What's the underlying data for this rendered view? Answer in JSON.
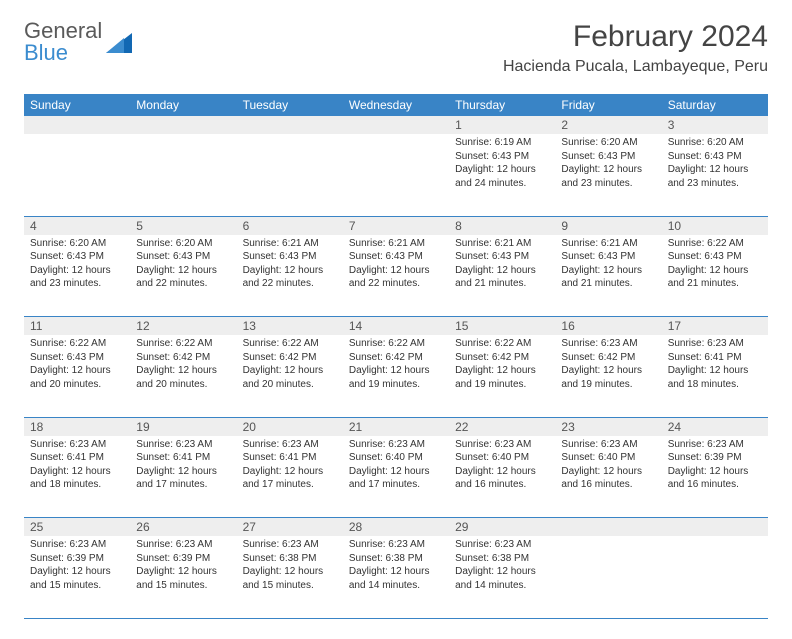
{
  "logo": {
    "text_gray": "General",
    "text_blue": "Blue"
  },
  "title": "February 2024",
  "location": "Hacienda Pucala, Lambayeque, Peru",
  "colors": {
    "header_bg": "#3984c6",
    "header_text": "#ffffff",
    "daynum_bg": "#eeeeee",
    "text": "#333333",
    "rule": "#3984c6"
  },
  "fonts": {
    "title_size": 30,
    "location_size": 16,
    "header_size": 12,
    "body_size": 10
  },
  "weekdays": [
    "Sunday",
    "Monday",
    "Tuesday",
    "Wednesday",
    "Thursday",
    "Friday",
    "Saturday"
  ],
  "weeks": [
    [
      null,
      null,
      null,
      null,
      {
        "n": "1",
        "sunrise": "Sunrise: 6:19 AM",
        "sunset": "Sunset: 6:43 PM",
        "day": "Daylight: 12 hours and 24 minutes."
      },
      {
        "n": "2",
        "sunrise": "Sunrise: 6:20 AM",
        "sunset": "Sunset: 6:43 PM",
        "day": "Daylight: 12 hours and 23 minutes."
      },
      {
        "n": "3",
        "sunrise": "Sunrise: 6:20 AM",
        "sunset": "Sunset: 6:43 PM",
        "day": "Daylight: 12 hours and 23 minutes."
      }
    ],
    [
      {
        "n": "4",
        "sunrise": "Sunrise: 6:20 AM",
        "sunset": "Sunset: 6:43 PM",
        "day": "Daylight: 12 hours and 23 minutes."
      },
      {
        "n": "5",
        "sunrise": "Sunrise: 6:20 AM",
        "sunset": "Sunset: 6:43 PM",
        "day": "Daylight: 12 hours and 22 minutes."
      },
      {
        "n": "6",
        "sunrise": "Sunrise: 6:21 AM",
        "sunset": "Sunset: 6:43 PM",
        "day": "Daylight: 12 hours and 22 minutes."
      },
      {
        "n": "7",
        "sunrise": "Sunrise: 6:21 AM",
        "sunset": "Sunset: 6:43 PM",
        "day": "Daylight: 12 hours and 22 minutes."
      },
      {
        "n": "8",
        "sunrise": "Sunrise: 6:21 AM",
        "sunset": "Sunset: 6:43 PM",
        "day": "Daylight: 12 hours and 21 minutes."
      },
      {
        "n": "9",
        "sunrise": "Sunrise: 6:21 AM",
        "sunset": "Sunset: 6:43 PM",
        "day": "Daylight: 12 hours and 21 minutes."
      },
      {
        "n": "10",
        "sunrise": "Sunrise: 6:22 AM",
        "sunset": "Sunset: 6:43 PM",
        "day": "Daylight: 12 hours and 21 minutes."
      }
    ],
    [
      {
        "n": "11",
        "sunrise": "Sunrise: 6:22 AM",
        "sunset": "Sunset: 6:43 PM",
        "day": "Daylight: 12 hours and 20 minutes."
      },
      {
        "n": "12",
        "sunrise": "Sunrise: 6:22 AM",
        "sunset": "Sunset: 6:42 PM",
        "day": "Daylight: 12 hours and 20 minutes."
      },
      {
        "n": "13",
        "sunrise": "Sunrise: 6:22 AM",
        "sunset": "Sunset: 6:42 PM",
        "day": "Daylight: 12 hours and 20 minutes."
      },
      {
        "n": "14",
        "sunrise": "Sunrise: 6:22 AM",
        "sunset": "Sunset: 6:42 PM",
        "day": "Daylight: 12 hours and 19 minutes."
      },
      {
        "n": "15",
        "sunrise": "Sunrise: 6:22 AM",
        "sunset": "Sunset: 6:42 PM",
        "day": "Daylight: 12 hours and 19 minutes."
      },
      {
        "n": "16",
        "sunrise": "Sunrise: 6:23 AM",
        "sunset": "Sunset: 6:42 PM",
        "day": "Daylight: 12 hours and 19 minutes."
      },
      {
        "n": "17",
        "sunrise": "Sunrise: 6:23 AM",
        "sunset": "Sunset: 6:41 PM",
        "day": "Daylight: 12 hours and 18 minutes."
      }
    ],
    [
      {
        "n": "18",
        "sunrise": "Sunrise: 6:23 AM",
        "sunset": "Sunset: 6:41 PM",
        "day": "Daylight: 12 hours and 18 minutes."
      },
      {
        "n": "19",
        "sunrise": "Sunrise: 6:23 AM",
        "sunset": "Sunset: 6:41 PM",
        "day": "Daylight: 12 hours and 17 minutes."
      },
      {
        "n": "20",
        "sunrise": "Sunrise: 6:23 AM",
        "sunset": "Sunset: 6:41 PM",
        "day": "Daylight: 12 hours and 17 minutes."
      },
      {
        "n": "21",
        "sunrise": "Sunrise: 6:23 AM",
        "sunset": "Sunset: 6:40 PM",
        "day": "Daylight: 12 hours and 17 minutes."
      },
      {
        "n": "22",
        "sunrise": "Sunrise: 6:23 AM",
        "sunset": "Sunset: 6:40 PM",
        "day": "Daylight: 12 hours and 16 minutes."
      },
      {
        "n": "23",
        "sunrise": "Sunrise: 6:23 AM",
        "sunset": "Sunset: 6:40 PM",
        "day": "Daylight: 12 hours and 16 minutes."
      },
      {
        "n": "24",
        "sunrise": "Sunrise: 6:23 AM",
        "sunset": "Sunset: 6:39 PM",
        "day": "Daylight: 12 hours and 16 minutes."
      }
    ],
    [
      {
        "n": "25",
        "sunrise": "Sunrise: 6:23 AM",
        "sunset": "Sunset: 6:39 PM",
        "day": "Daylight: 12 hours and 15 minutes."
      },
      {
        "n": "26",
        "sunrise": "Sunrise: 6:23 AM",
        "sunset": "Sunset: 6:39 PM",
        "day": "Daylight: 12 hours and 15 minutes."
      },
      {
        "n": "27",
        "sunrise": "Sunrise: 6:23 AM",
        "sunset": "Sunset: 6:38 PM",
        "day": "Daylight: 12 hours and 15 minutes."
      },
      {
        "n": "28",
        "sunrise": "Sunrise: 6:23 AM",
        "sunset": "Sunset: 6:38 PM",
        "day": "Daylight: 12 hours and 14 minutes."
      },
      {
        "n": "29",
        "sunrise": "Sunrise: 6:23 AM",
        "sunset": "Sunset: 6:38 PM",
        "day": "Daylight: 12 hours and 14 minutes."
      },
      null,
      null
    ]
  ]
}
